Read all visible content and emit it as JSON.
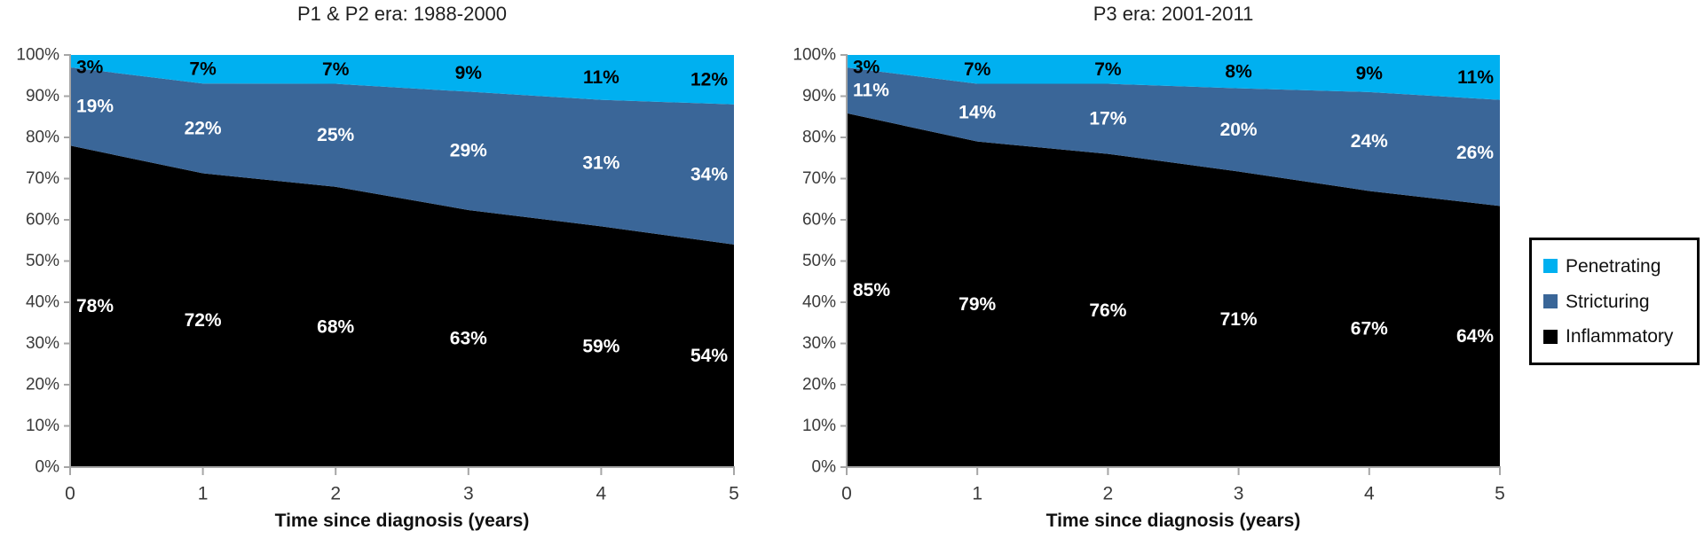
{
  "page": {
    "background": "#ffffff"
  },
  "chart_data": [
    {
      "type": "area",
      "stacked": "100%",
      "title": "P1 & P2 era: 1988-2000",
      "xlabel": "Time since diagnosis (years)",
      "x": [
        0,
        1,
        2,
        3,
        4,
        5
      ],
      "x_tick_labels": [
        "0",
        "1",
        "2",
        "3",
        "4",
        "5"
      ],
      "y_tick_labels": [
        "0%",
        "10%",
        "20%",
        "30%",
        "40%",
        "50%",
        "60%",
        "70%",
        "80%",
        "90%",
        "100%"
      ],
      "ylim": [
        0,
        100
      ],
      "grid": "off",
      "series": [
        {
          "name": "Inflammatory",
          "color": "#000000",
          "label_color": "#ffffff",
          "values": [
            78,
            72,
            68,
            63,
            59,
            54
          ]
        },
        {
          "name": "Stricturing",
          "color": "#3A6698",
          "label_color": "#ffffff",
          "values": [
            19,
            22,
            25,
            29,
            31,
            34
          ]
        },
        {
          "name": "Penetrating",
          "color": "#00B0F0",
          "label_color": "#000000",
          "values": [
            3,
            7,
            7,
            9,
            11,
            12
          ]
        }
      ]
    },
    {
      "type": "area",
      "stacked": "100%",
      "title": "P3 era: 2001-2011",
      "xlabel": "Time since diagnosis (years)",
      "x": [
        0,
        1,
        2,
        3,
        4,
        5
      ],
      "x_tick_labels": [
        "0",
        "1",
        "2",
        "3",
        "4",
        "5"
      ],
      "y_tick_labels": [
        "0%",
        "10%",
        "20%",
        "30%",
        "40%",
        "50%",
        "60%",
        "70%",
        "80%",
        "90%",
        "100%"
      ],
      "ylim": [
        0,
        100
      ],
      "grid": "off",
      "series": [
        {
          "name": "Inflammatory",
          "color": "#000000",
          "label_color": "#ffffff",
          "values": [
            85,
            79,
            76,
            71,
            67,
            64
          ]
        },
        {
          "name": "Stricturing",
          "color": "#3A6698",
          "label_color": "#ffffff",
          "values": [
            11,
            14,
            17,
            20,
            24,
            26
          ]
        },
        {
          "name": "Penetrating",
          "color": "#00B0F0",
          "label_color": "#000000",
          "values": [
            3,
            7,
            7,
            8,
            9,
            11
          ]
        }
      ]
    }
  ],
  "legend": {
    "position": "right",
    "border_color": "#000000",
    "items": [
      {
        "label": "Penetrating",
        "color": "#00B0F0"
      },
      {
        "label": "Stricturing",
        "color": "#3A6698"
      },
      {
        "label": "Inflammatory",
        "color": "#000000"
      }
    ]
  },
  "axis": {
    "line_color": "#A6A6A6",
    "tick_color": "#A6A6A6"
  }
}
